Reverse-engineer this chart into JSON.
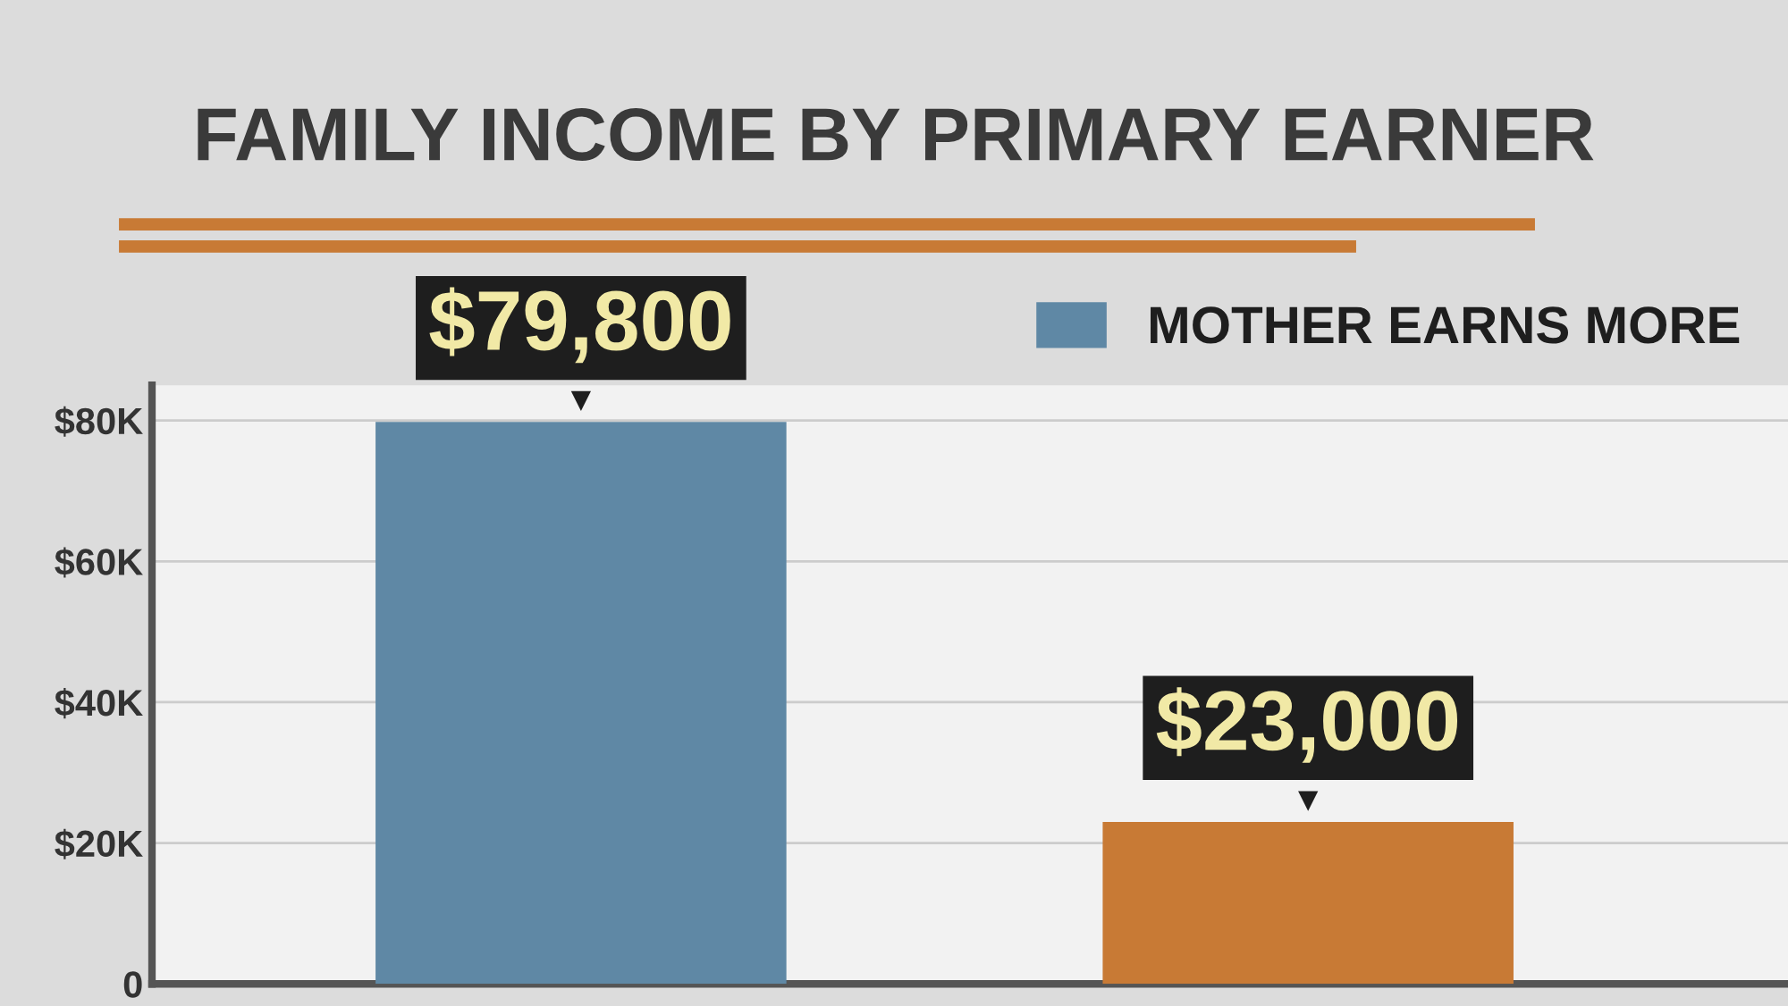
{
  "chart_data": {
    "type": "bar",
    "title": "FAMILY INCOME BY PRIMARY EARNER",
    "categories": [
      null,
      null
    ],
    "series": [
      {
        "name": "MOTHER EARNS MORE",
        "color": "#5f88a5",
        "values": [
          79800,
          null
        ],
        "value_labels": [
          "$79,800",
          null
        ]
      },
      {
        "color": "#c87a35",
        "values": [
          null,
          23000
        ],
        "value_labels": [
          null,
          "$23,000"
        ]
      }
    ],
    "ylim": [
      0,
      85000
    ],
    "yticks": [
      {
        "value": 0,
        "label": "0"
      },
      {
        "value": 20000,
        "label": "$20K"
      },
      {
        "value": 40000,
        "label": "$40K"
      },
      {
        "value": 60000,
        "label": "$60K"
      },
      {
        "value": 80000,
        "label": "$80K"
      }
    ],
    "grid": "y",
    "legend": "top right"
  }
}
